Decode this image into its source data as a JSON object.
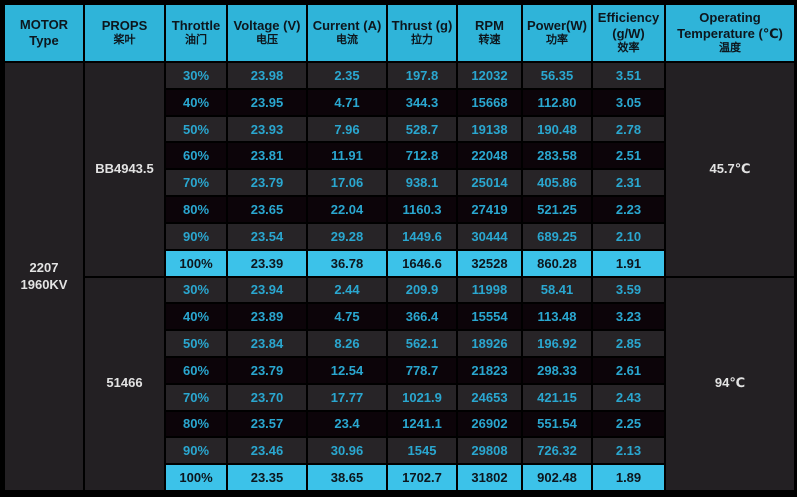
{
  "colors": {
    "header_bg": "#2fb4d9",
    "highlight_bg": "#3cc2e9",
    "row_dark": "#272427",
    "row_black": "#0c0409",
    "side_bg": "#232023",
    "data_text": "#2aa7d0",
    "header_text": "#0d161d",
    "side_text": "#e3e3e3",
    "border": "#000000"
  },
  "table": {
    "headers": [
      {
        "id": "motor-type",
        "lines": [
          "MOTOR",
          "Type"
        ]
      },
      {
        "id": "props",
        "lines": [
          "PROPS",
          "桨叶"
        ]
      },
      {
        "id": "throttle",
        "lines": [
          "Throttle",
          "油门"
        ]
      },
      {
        "id": "voltage",
        "lines": [
          "Voltage (V)",
          "电压"
        ]
      },
      {
        "id": "current",
        "lines": [
          "Current (A)",
          "电流"
        ]
      },
      {
        "id": "thrust",
        "lines": [
          "Thrust (g)",
          "拉力"
        ]
      },
      {
        "id": "rpm",
        "lines": [
          "RPM",
          "转速"
        ]
      },
      {
        "id": "power",
        "lines": [
          "Power(W)",
          "功率"
        ]
      },
      {
        "id": "efficiency",
        "lines": [
          "Efficiency",
          "(g/W)",
          "效率"
        ]
      },
      {
        "id": "temperature",
        "lines": [
          "Operating",
          "Temperature (℃)",
          "温度"
        ]
      }
    ],
    "motor_lines": [
      "2207",
      "1960KV"
    ]
  },
  "chart_data": {
    "type": "table",
    "motor": "2207 1960KV",
    "columns": [
      "MOTOR Type",
      "PROPS 桨叶",
      "Throttle 油门",
      "Voltage (V) 电压",
      "Current (A) 电流",
      "Thrust (g) 拉力",
      "RPM 转速",
      "Power(W) 功率",
      "Efficiency (g/W) 效率",
      "Operating Temperature (℃) 温度"
    ],
    "groups": [
      {
        "props": "BB4943.5",
        "operating_temperature": "45.7℃",
        "rows": [
          {
            "throttle": "30%",
            "voltage": "23.98",
            "current": "2.35",
            "thrust": "197.8",
            "rpm": "12032",
            "power": "56.35",
            "efficiency": "3.51"
          },
          {
            "throttle": "40%",
            "voltage": "23.95",
            "current": "4.71",
            "thrust": "344.3",
            "rpm": "15668",
            "power": "112.80",
            "efficiency": "3.05"
          },
          {
            "throttle": "50%",
            "voltage": "23.93",
            "current": "7.96",
            "thrust": "528.7",
            "rpm": "19138",
            "power": "190.48",
            "efficiency": "2.78"
          },
          {
            "throttle": "60%",
            "voltage": "23.81",
            "current": "11.91",
            "thrust": "712.8",
            "rpm": "22048",
            "power": "283.58",
            "efficiency": "2.51"
          },
          {
            "throttle": "70%",
            "voltage": "23.79",
            "current": "17.06",
            "thrust": "938.1",
            "rpm": "25014",
            "power": "405.86",
            "efficiency": "2.31"
          },
          {
            "throttle": "80%",
            "voltage": "23.65",
            "current": "22.04",
            "thrust": "1160.3",
            "rpm": "27419",
            "power": "521.25",
            "efficiency": "2.23"
          },
          {
            "throttle": "90%",
            "voltage": "23.54",
            "current": "29.28",
            "thrust": "1449.6",
            "rpm": "30444",
            "power": "689.25",
            "efficiency": "2.10"
          },
          {
            "throttle": "100%",
            "voltage": "23.39",
            "current": "36.78",
            "thrust": "1646.6",
            "rpm": "32528",
            "power": "860.28",
            "efficiency": "1.91"
          }
        ]
      },
      {
        "props": "51466",
        "operating_temperature": "94℃",
        "rows": [
          {
            "throttle": "30%",
            "voltage": "23.94",
            "current": "2.44",
            "thrust": "209.9",
            "rpm": "11998",
            "power": "58.41",
            "efficiency": "3.59"
          },
          {
            "throttle": "40%",
            "voltage": "23.89",
            "current": "4.75",
            "thrust": "366.4",
            "rpm": "15554",
            "power": "113.48",
            "efficiency": "3.23"
          },
          {
            "throttle": "50%",
            "voltage": "23.84",
            "current": "8.26",
            "thrust": "562.1",
            "rpm": "18926",
            "power": "196.92",
            "efficiency": "2.85"
          },
          {
            "throttle": "60%",
            "voltage": "23.79",
            "current": "12.54",
            "thrust": "778.7",
            "rpm": "21823",
            "power": "298.33",
            "efficiency": "2.61"
          },
          {
            "throttle": "70%",
            "voltage": "23.70",
            "current": "17.77",
            "thrust": "1021.9",
            "rpm": "24653",
            "power": "421.15",
            "efficiency": "2.43"
          },
          {
            "throttle": "80%",
            "voltage": "23.57",
            "current": "23.4",
            "thrust": "1241.1",
            "rpm": "26902",
            "power": "551.54",
            "efficiency": "2.25"
          },
          {
            "throttle": "90%",
            "voltage": "23.46",
            "current": "30.96",
            "thrust": "1545",
            "rpm": "29808",
            "power": "726.32",
            "efficiency": "2.13"
          },
          {
            "throttle": "100%",
            "voltage": "23.35",
            "current": "38.65",
            "thrust": "1702.7",
            "rpm": "31802",
            "power": "902.48",
            "efficiency": "1.89"
          }
        ]
      }
    ]
  }
}
